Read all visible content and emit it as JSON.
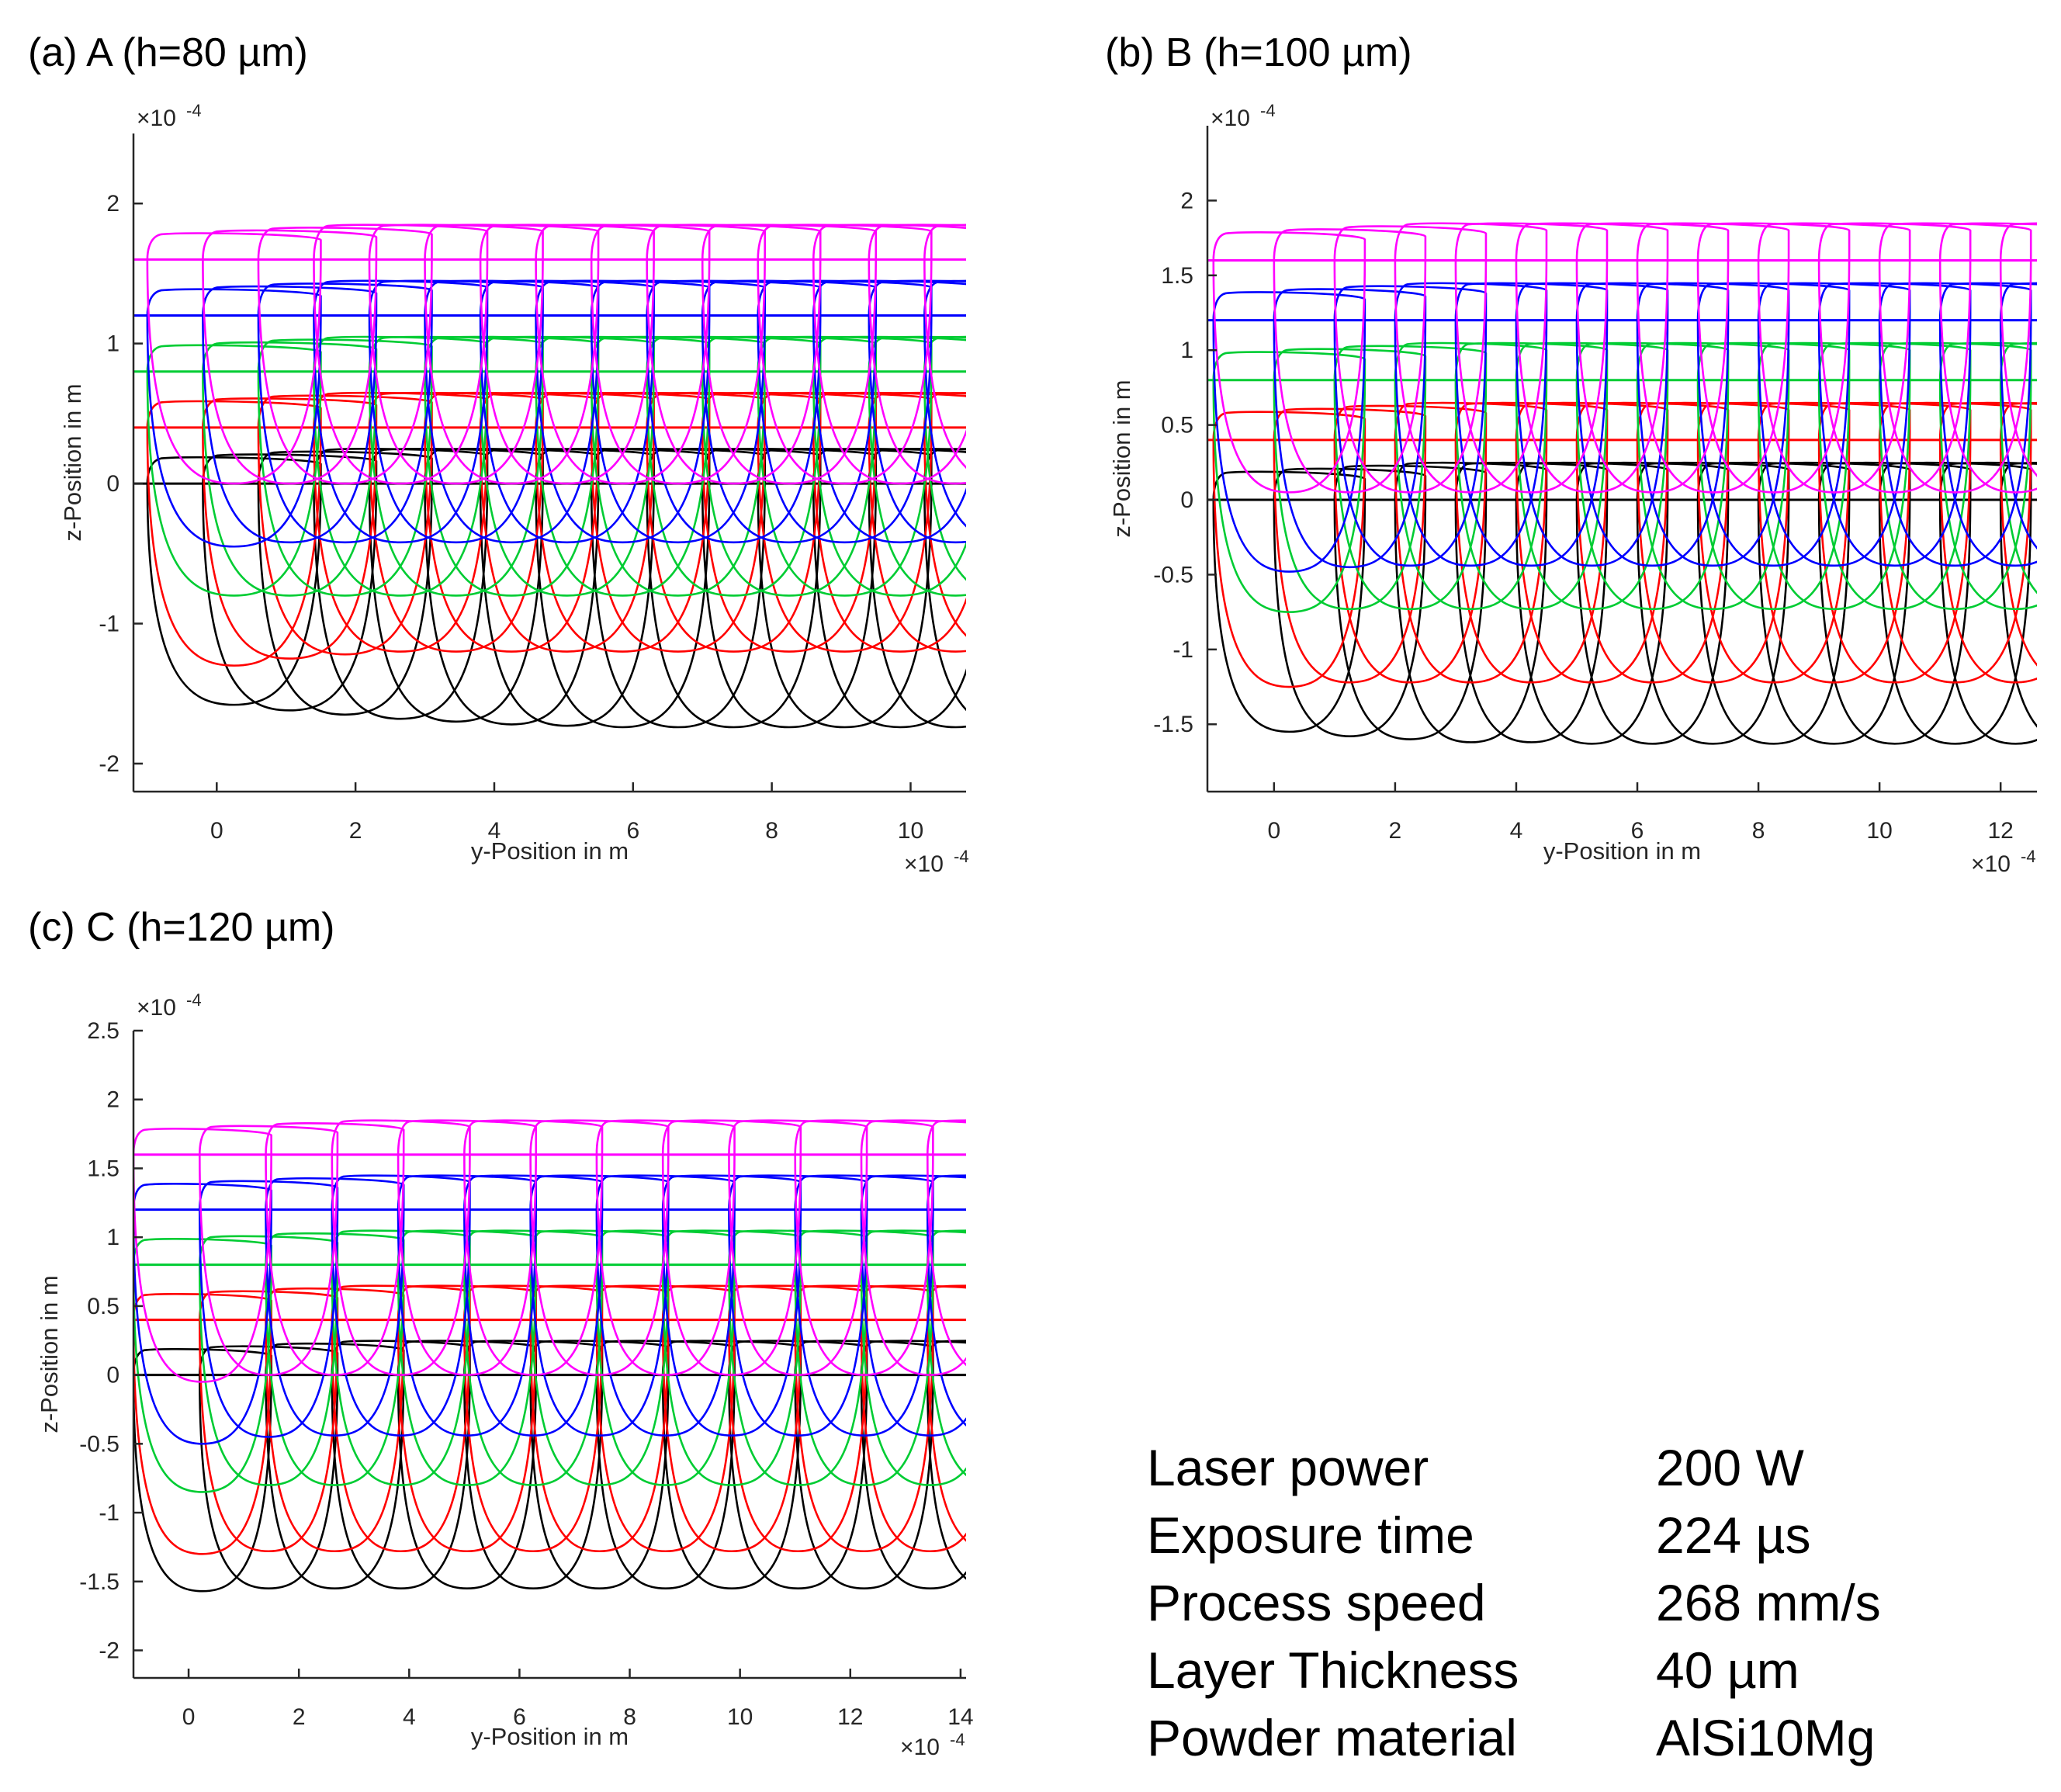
{
  "colors": {
    "layer0": "#000000",
    "layer1": "#ff0000",
    "layer2": "#00cc33",
    "layer3": "#0000ff",
    "layer4": "#ff00ff",
    "axis": "#262626"
  },
  "chart_data": [
    {
      "id": "a",
      "type": "line",
      "title": "(a) A (h=80 µm)",
      "xlabel": "y-Position in m",
      "ylabel": "z-Position in m",
      "x_exponent_label": "×10",
      "y_exponent_label": "×10",
      "exponent": "-4",
      "xlim": [
        -1.2,
        10.8
      ],
      "ylim": [
        -2.2,
        2.5
      ],
      "xticks": [
        0,
        2,
        4,
        6,
        8,
        10
      ],
      "yticks": [
        -2,
        -1,
        0,
        1,
        2
      ],
      "hatch_distance_um": 80,
      "track_count": 15,
      "layers": [
        {
          "name": "layer 0",
          "surface_z": 0.0,
          "depth": [
            -1.58,
            -1.62,
            -1.65,
            -1.68,
            -1.7,
            -1.72,
            -1.73,
            -1.74
          ]
        },
        {
          "name": "layer 1",
          "surface_z": 0.4,
          "depth": [
            -1.3,
            -1.25,
            -1.22,
            -1.2,
            -1.2,
            -1.2,
            -1.2,
            -1.2
          ]
        },
        {
          "name": "layer 2",
          "surface_z": 0.8,
          "depth": [
            -0.8,
            -0.8,
            -0.8,
            -0.8,
            -0.8,
            -0.8,
            -0.8,
            -0.8
          ]
        },
        {
          "name": "layer 3",
          "surface_z": 1.2,
          "depth": [
            -0.45,
            -0.42,
            -0.42,
            -0.42,
            -0.42,
            -0.42,
            -0.42,
            -0.42
          ]
        },
        {
          "name": "layer 4",
          "surface_z": 1.6,
          "depth": [
            0.0,
            0.0,
            0.0,
            0.0,
            0.0,
            0.0,
            0.0,
            0.0
          ]
        }
      ]
    },
    {
      "id": "b",
      "type": "line",
      "title": "(b) B (h=100 µm)",
      "xlabel": "y-Position in m",
      "ylabel": "z-Position in m",
      "x_exponent_label": "×10",
      "y_exponent_label": "×10",
      "exponent": "-4",
      "xlim": [
        -1.1,
        12.6
      ],
      "ylim": [
        -1.95,
        2.5
      ],
      "xticks": [
        0,
        2,
        4,
        6,
        8,
        10,
        12
      ],
      "yticks": [
        -1.5,
        -1,
        -0.5,
        0,
        0.5,
        1,
        1.5,
        2
      ],
      "hatch_distance_um": 100,
      "track_count": 14,
      "layers": [
        {
          "name": "layer 0",
          "surface_z": 0.0,
          "depth": [
            -1.55,
            -1.58,
            -1.6,
            -1.62,
            -1.62,
            -1.63,
            -1.63,
            -1.63
          ]
        },
        {
          "name": "layer 1",
          "surface_z": 0.4,
          "depth": [
            -1.25,
            -1.22,
            -1.22,
            -1.22,
            -1.22,
            -1.22,
            -1.22,
            -1.22
          ]
        },
        {
          "name": "layer 2",
          "surface_z": 0.8,
          "depth": [
            -0.75,
            -0.73,
            -0.73,
            -0.73,
            -0.73,
            -0.73,
            -0.73,
            -0.73
          ]
        },
        {
          "name": "layer 3",
          "surface_z": 1.2,
          "depth": [
            -0.48,
            -0.45,
            -0.44,
            -0.44,
            -0.44,
            -0.44,
            -0.44,
            -0.44
          ]
        },
        {
          "name": "layer 4",
          "surface_z": 1.6,
          "depth": [
            0.05,
            0.05,
            0.05,
            0.05,
            0.05,
            0.05,
            0.05,
            0.05
          ]
        }
      ]
    },
    {
      "id": "c",
      "type": "line",
      "title": "(c) C (h=120 µm)",
      "xlabel": "y-Position in m",
      "ylabel": "z-Position in m",
      "x_exponent_label": "×10",
      "y_exponent_label": "×10",
      "exponent": "-4",
      "xlim": [
        -1.0,
        14.1
      ],
      "ylim": [
        -2.2,
        2.5
      ],
      "xticks": [
        0,
        2,
        4,
        6,
        8,
        10,
        12,
        14
      ],
      "yticks": [
        -2,
        -1.5,
        -1,
        -0.5,
        0,
        0.5,
        1,
        1.5,
        2,
        2.5
      ],
      "hatch_distance_um": 120,
      "track_count": 13,
      "layers": [
        {
          "name": "layer 0",
          "surface_z": 0.0,
          "depth": [
            -1.57,
            -1.55,
            -1.55,
            -1.55,
            -1.55,
            -1.55,
            -1.55,
            -1.55
          ]
        },
        {
          "name": "layer 1",
          "surface_z": 0.4,
          "depth": [
            -1.3,
            -1.28,
            -1.28,
            -1.28,
            -1.28,
            -1.28,
            -1.28,
            -1.28
          ]
        },
        {
          "name": "layer 2",
          "surface_z": 0.8,
          "depth": [
            -0.85,
            -0.8,
            -0.8,
            -0.8,
            -0.8,
            -0.8,
            -0.8,
            -0.8
          ]
        },
        {
          "name": "layer 3",
          "surface_z": 1.2,
          "depth": [
            -0.5,
            -0.45,
            -0.44,
            -0.44,
            -0.44,
            -0.44,
            -0.44,
            -0.44
          ]
        },
        {
          "name": "layer 4",
          "surface_z": 1.6,
          "depth": [
            -0.05,
            0.0,
            0.0,
            0.0,
            0.0,
            0.0,
            0.0,
            0.0
          ]
        }
      ]
    }
  ],
  "parameters": [
    {
      "label": "Laser power",
      "value": "200 W"
    },
    {
      "label": "Exposure time",
      "value": "224 µs"
    },
    {
      "label": "Process speed",
      "value": "268 mm/s"
    },
    {
      "label": "Layer Thickness",
      "value": "40 µm"
    },
    {
      "label": "Powder material",
      "value": "AlSi10Mg"
    }
  ]
}
